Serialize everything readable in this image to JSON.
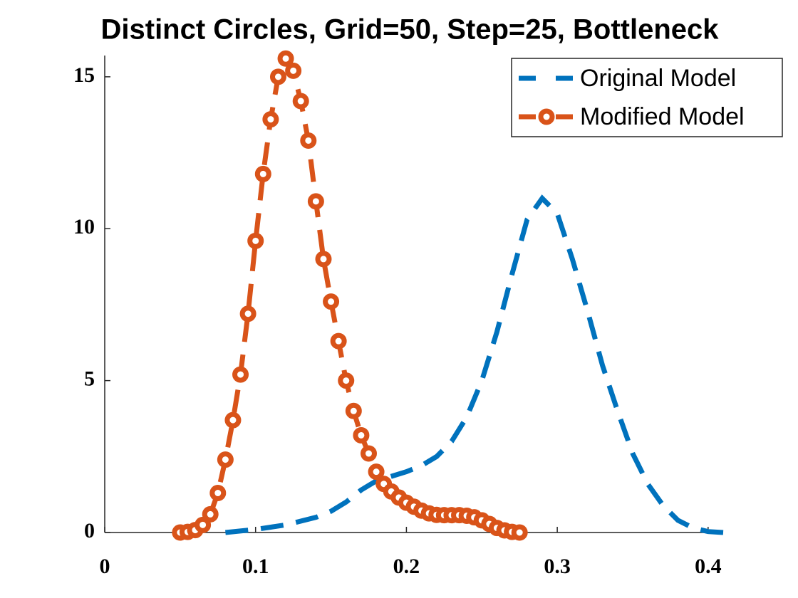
{
  "chart_data": {
    "type": "line",
    "title": "Distinct Circles, Grid=50, Step=25, Bottleneck",
    "xlim": [
      0,
      0.41
    ],
    "ylim": [
      0,
      15.7
    ],
    "xticks": [
      0,
      0.1,
      0.2,
      0.3,
      0.4
    ],
    "yticks": [
      0,
      5,
      10,
      15
    ],
    "legend": "upper right",
    "series": [
      {
        "name": "Original Model",
        "color": "#0072bd",
        "dashed": true,
        "marker": false,
        "x": [
          0.08,
          0.1,
          0.12,
          0.14,
          0.15,
          0.16,
          0.17,
          0.18,
          0.19,
          0.2,
          0.21,
          0.22,
          0.23,
          0.24,
          0.25,
          0.26,
          0.27,
          0.28,
          0.29,
          0.3,
          0.31,
          0.32,
          0.33,
          0.34,
          0.35,
          0.36,
          0.37,
          0.38,
          0.39,
          0.4,
          0.41
        ],
        "values": [
          0,
          0.1,
          0.25,
          0.5,
          0.7,
          1.0,
          1.4,
          1.7,
          1.85,
          2.0,
          2.2,
          2.5,
          3.0,
          3.8,
          5.0,
          6.6,
          8.5,
          10.3,
          11.0,
          10.5,
          9.0,
          7.3,
          5.5,
          4.0,
          2.6,
          1.6,
          0.9,
          0.4,
          0.15,
          0.03,
          0
        ]
      },
      {
        "name": "Modified Model",
        "color": "#d95319",
        "dashed": true,
        "marker": true,
        "x": [
          0.05,
          0.055,
          0.06,
          0.065,
          0.07,
          0.075,
          0.08,
          0.085,
          0.09,
          0.095,
          0.1,
          0.105,
          0.11,
          0.115,
          0.12,
          0.125,
          0.13,
          0.135,
          0.14,
          0.145,
          0.15,
          0.155,
          0.16,
          0.165,
          0.17,
          0.175,
          0.18,
          0.185,
          0.19,
          0.195,
          0.2,
          0.205,
          0.21,
          0.215,
          0.22,
          0.225,
          0.23,
          0.235,
          0.24,
          0.245,
          0.25,
          0.255,
          0.26,
          0.265,
          0.27,
          0.275
        ],
        "values": [
          0,
          0.02,
          0.08,
          0.25,
          0.6,
          1.3,
          2.4,
          3.7,
          5.2,
          7.2,
          9.6,
          11.8,
          13.6,
          15.0,
          15.6,
          15.2,
          14.2,
          12.9,
          10.9,
          9.0,
          7.6,
          6.3,
          5.0,
          4.0,
          3.2,
          2.6,
          2.0,
          1.6,
          1.35,
          1.15,
          0.98,
          0.85,
          0.72,
          0.63,
          0.58,
          0.57,
          0.57,
          0.57,
          0.55,
          0.5,
          0.4,
          0.28,
          0.15,
          0.07,
          0.02,
          0
        ]
      }
    ]
  }
}
